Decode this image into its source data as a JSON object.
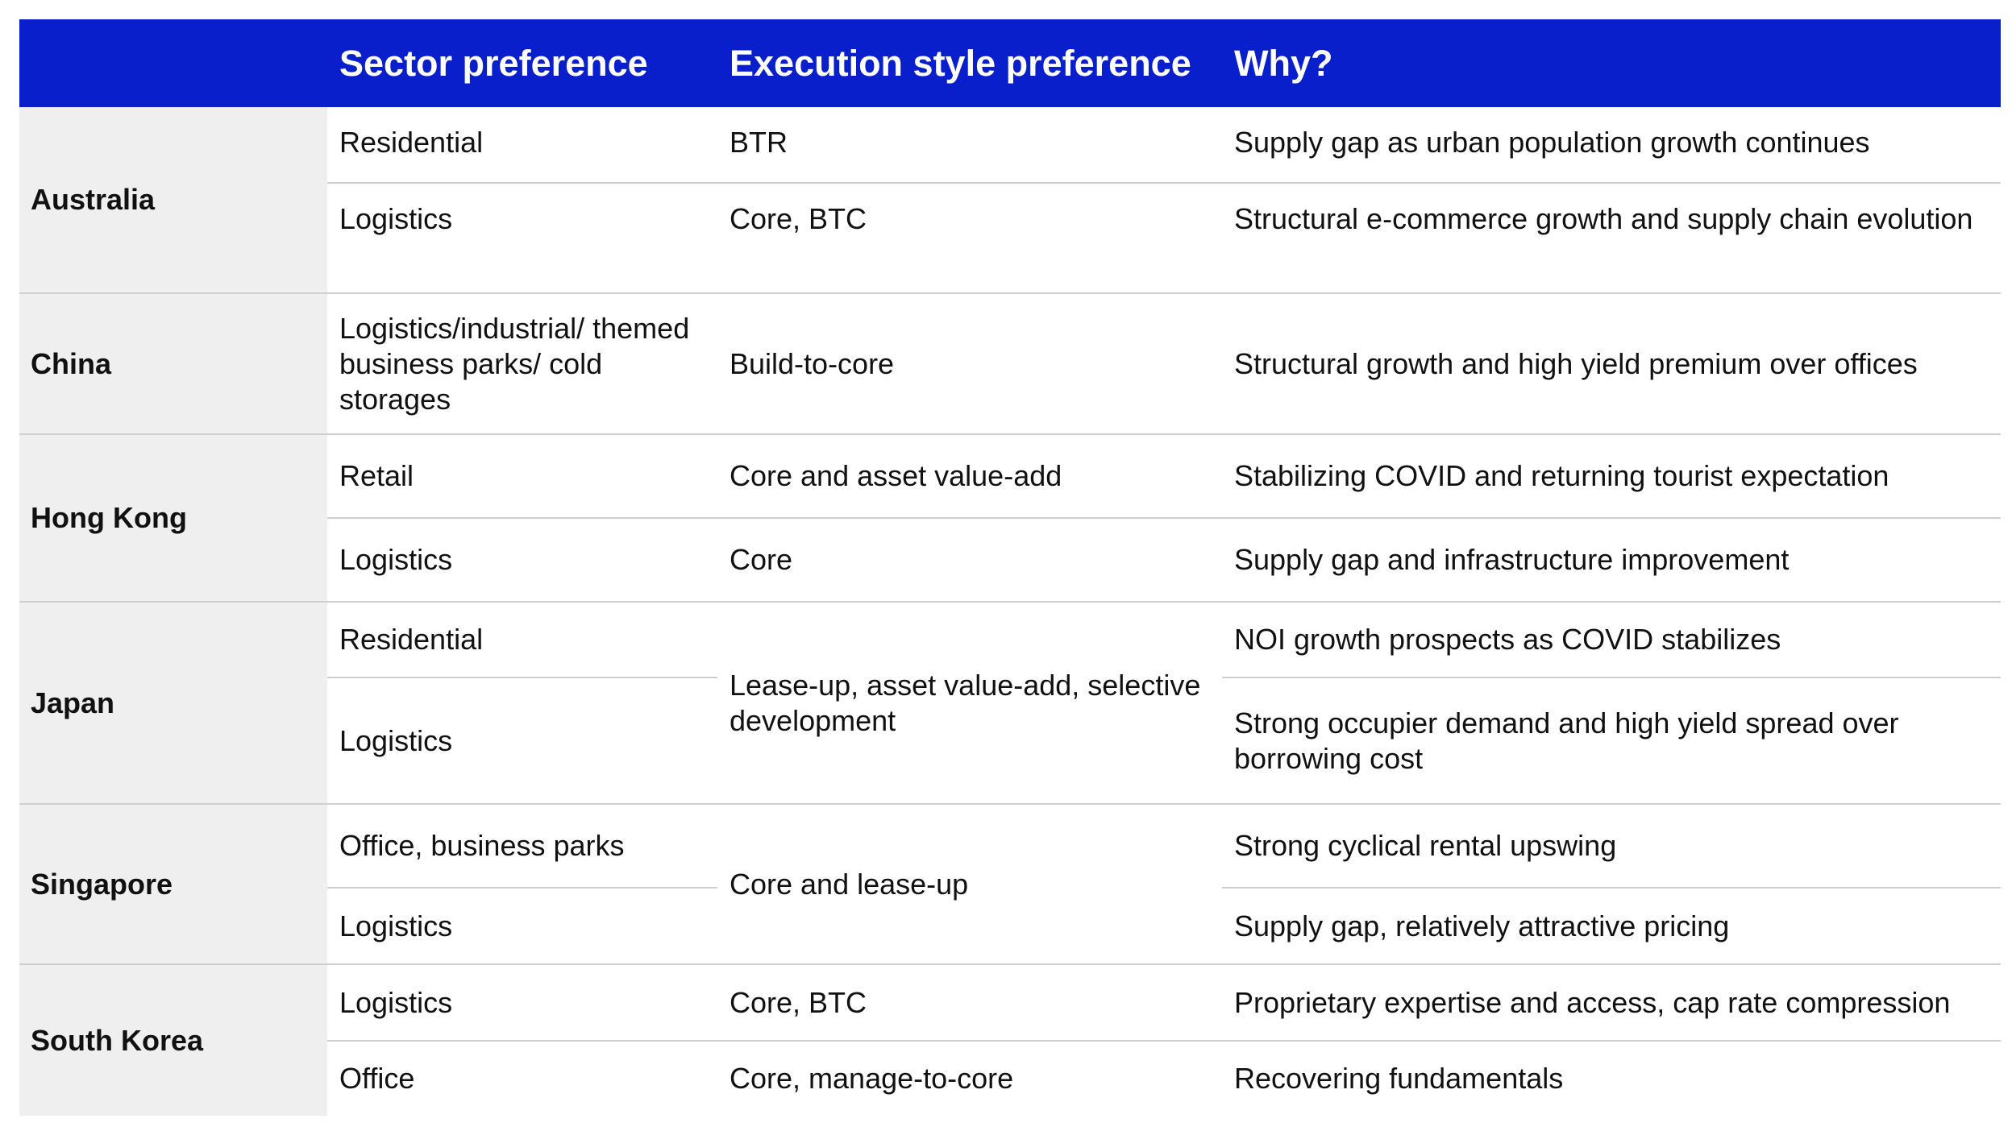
{
  "header": {
    "col1": "",
    "col2": "Sector preference",
    "col3": "Execution style preference",
    "col4": "Why?"
  },
  "countries": [
    {
      "name": "Australia"
    },
    {
      "name": "China"
    },
    {
      "name": "Hong Kong"
    },
    {
      "name": "Japan"
    },
    {
      "name": "Singapore"
    },
    {
      "name": "South Korea"
    }
  ],
  "rows": {
    "australia": [
      {
        "sector": "Residential",
        "execution": "BTR",
        "why": "Supply gap as urban population growth continues"
      },
      {
        "sector": "Logistics",
        "execution": "Core, BTC",
        "why": "Structural e-commerce growth and supply chain evolution"
      }
    ],
    "china": [
      {
        "sector": "Logistics/industrial/ themed business parks/ cold storages",
        "execution": "Build-to-core",
        "why": "Structural growth and high yield premium over offices"
      }
    ],
    "hong_kong": [
      {
        "sector": "Retail",
        "execution": "Core and asset value-add",
        "why": "Stabilizing COVID and returning tourist expectation"
      },
      {
        "sector": "Logistics",
        "execution": "Core",
        "why": "Supply gap and infrastructure improvement"
      }
    ],
    "japan": {
      "sectors": [
        "Residential",
        "Logistics"
      ],
      "execution": "Lease-up, asset value-add, selective development",
      "why": [
        "NOI growth prospects as COVID stabilizes",
        "Strong occupier demand and high yield spread over borrowing cost"
      ]
    },
    "singapore": {
      "sectors": [
        "Office, business parks",
        "Logistics"
      ],
      "execution": "Core and lease-up",
      "why": [
        "Strong cyclical rental upswing",
        "Supply gap, relatively attractive pricing"
      ]
    },
    "south_korea": [
      {
        "sector": "Logistics",
        "execution": "Core, BTC",
        "why": "Proprietary expertise and access, cap rate compression"
      },
      {
        "sector": "Office",
        "execution": "Core, manage-to-core",
        "why": "Recovering fundamentals"
      }
    ]
  },
  "colors": {
    "header_bg": "#0a1fcc",
    "header_text": "#ffffff",
    "country_bg": "#efefef",
    "divider": "#cfcfcf"
  }
}
